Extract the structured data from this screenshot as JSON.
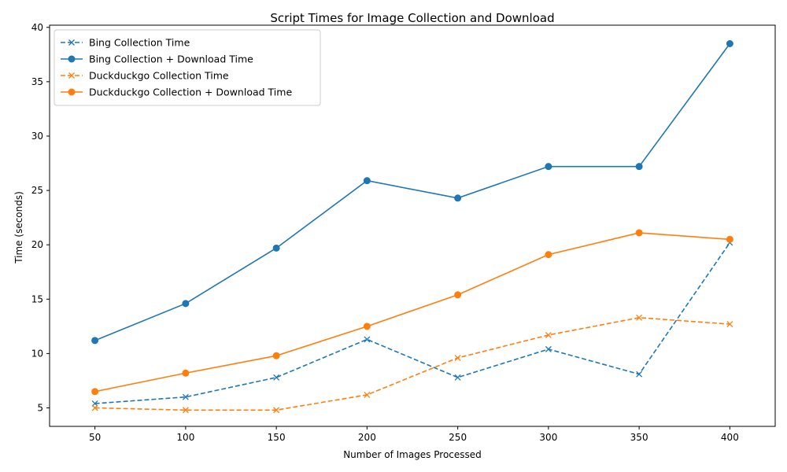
{
  "chart_data": {
    "type": "line",
    "title": "Script Times for Image Collection and Download",
    "xlabel": "Number of Images Processed",
    "ylabel": "Time (seconds)",
    "x": [
      50,
      100,
      150,
      200,
      250,
      300,
      350,
      400
    ],
    "xlim": [
      25,
      425
    ],
    "ylim": [
      3.3,
      40.2
    ],
    "yticks": [
      5,
      10,
      15,
      20,
      25,
      30,
      35,
      40
    ],
    "grid": false,
    "legend_position": "top-left",
    "series": [
      {
        "name": "Bing Collection Time",
        "color": "#1f77b4",
        "line_style": "dashed",
        "marker": "x",
        "values": [
          5.4,
          6.0,
          7.8,
          11.3,
          7.8,
          10.4,
          8.1,
          20.2
        ]
      },
      {
        "name": "Bing Collection + Download Time",
        "color": "#1f77b4",
        "line_style": "solid",
        "marker": "circle",
        "values": [
          11.2,
          14.6,
          19.7,
          25.9,
          24.3,
          27.2,
          27.2,
          38.5
        ]
      },
      {
        "name": "Duckduckgo Collection Time",
        "color": "#ff7f0e",
        "line_style": "dashed",
        "marker": "x",
        "values": [
          5.0,
          4.8,
          4.8,
          6.2,
          9.6,
          11.7,
          13.3,
          12.7
        ]
      },
      {
        "name": "Duckduckgo Collection + Download Time",
        "color": "#ff7f0e",
        "line_style": "solid",
        "marker": "circle",
        "values": [
          6.5,
          8.2,
          9.8,
          12.5,
          15.4,
          19.1,
          21.1,
          20.5
        ]
      }
    ]
  }
}
